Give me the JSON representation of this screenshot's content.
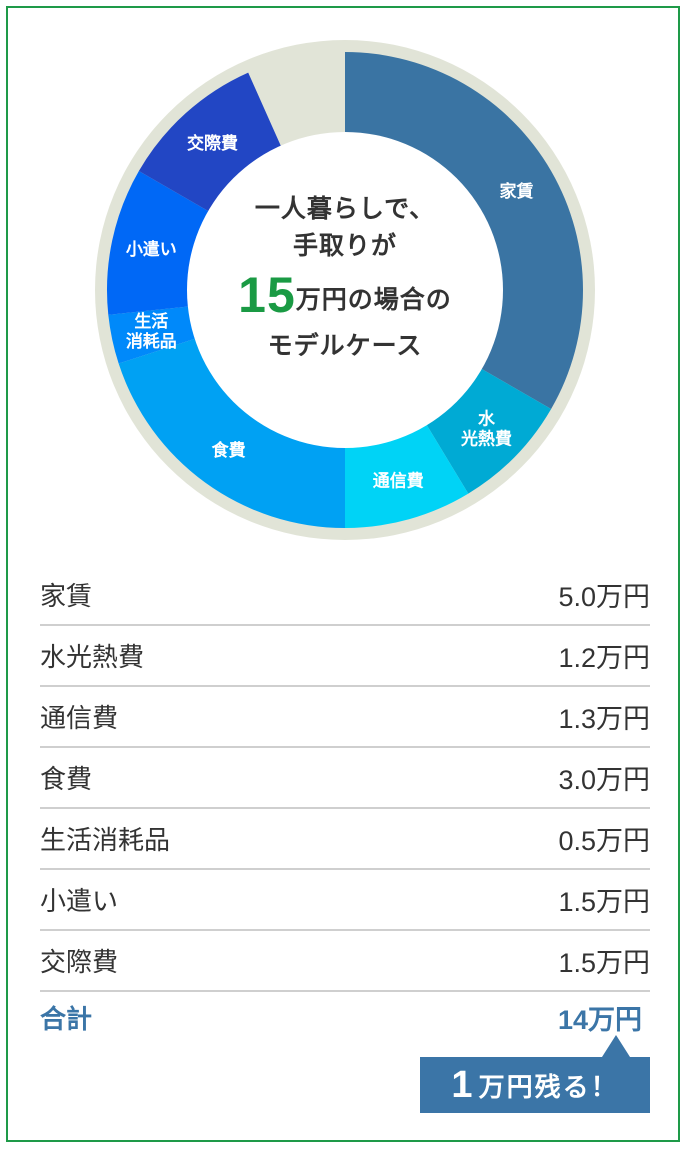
{
  "center": {
    "line1": "一人暮らしで、",
    "line2": "手取りが",
    "amount": "15",
    "line3_rest": "万円の場合の",
    "line4": "モデルケース"
  },
  "chart_data": {
    "type": "pie",
    "donut": true,
    "total": 15,
    "unit": "万円",
    "categories": [
      "家賃",
      "水光熱費",
      "通信費",
      "食費",
      "生活消耗品",
      "小遣い",
      "交際費"
    ],
    "values": [
      5.0,
      1.2,
      1.3,
      3.0,
      0.5,
      1.5,
      1.5
    ],
    "colors": [
      "#3a74a3",
      "#00aad4",
      "#00d3f6",
      "#00a1f3",
      "#0089fa",
      "#0068f6",
      "#2246c4"
    ],
    "labels": [
      [
        "家賃"
      ],
      [
        "水",
        "光熱費"
      ],
      [
        "通信費"
      ],
      [
        "食費"
      ],
      [
        "生活",
        "消耗品"
      ],
      [
        "小遣い"
      ],
      [
        "交際費"
      ]
    ],
    "ring_color": "#e1e4d7"
  },
  "breakdown": [
    {
      "label": "家賃",
      "amount": "5.0万円"
    },
    {
      "label": "水光熱費",
      "amount": "1.2万円"
    },
    {
      "label": "通信費",
      "amount": "1.3万円"
    },
    {
      "label": "食費",
      "amount": "3.0万円"
    },
    {
      "label": "生活消耗品",
      "amount": "0.5万円"
    },
    {
      "label": "小遣い",
      "amount": "1.5万円"
    },
    {
      "label": "交際費",
      "amount": "1.5万円"
    }
  ],
  "total": {
    "label": "合計",
    "amount": "14万円"
  },
  "callout": {
    "number": "1",
    "text": "万円残る！"
  },
  "colors": {
    "frame": "#1e9a48",
    "accent_green": "#1a9a44",
    "accent_blue": "#3b75a7"
  }
}
